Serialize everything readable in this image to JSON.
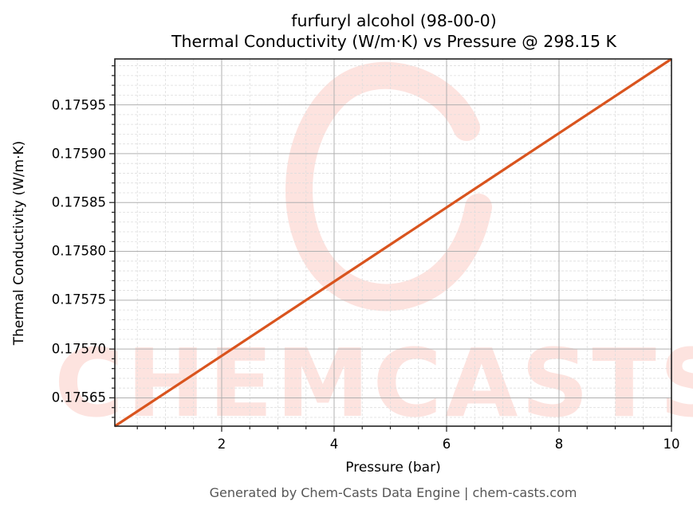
{
  "chart_data": {
    "type": "line",
    "title": "furfuryl alcohol (98-00-0)",
    "subtitle": "Thermal Conductivity (W/m·K) vs Pressure @ 298.15 K",
    "xlabel": "Pressure (bar)",
    "ylabel": "Thermal Conductivity (W/m·K)",
    "xlim": [
      0.1,
      10
    ],
    "ylim": [
      0.175621,
      0.175997
    ],
    "x_ticks": [
      "2",
      "4",
      "6",
      "8",
      "10"
    ],
    "y_ticks": [
      "0.17565",
      "0.17570",
      "0.17575",
      "0.17580",
      "0.17585",
      "0.17590",
      "0.17595"
    ],
    "grid": true,
    "legend": null,
    "series": [
      {
        "name": "Thermal Conductivity",
        "color": "#d9541e",
        "x": [
          0.1,
          2,
          4,
          6,
          8,
          10
        ],
        "values": [
          0.175621,
          0.175693,
          0.175769,
          0.175845,
          0.175921,
          0.175997
        ]
      }
    ],
    "watermark": "CHEMCASTS"
  },
  "footer": "Generated by Chem-Casts Data Engine | chem-casts.com",
  "colors": {
    "line": "#d9541e",
    "grid_major": "#b0b0b0",
    "grid_minor": "#dddddd",
    "watermark": "#fde3df",
    "footer": "#555555"
  }
}
